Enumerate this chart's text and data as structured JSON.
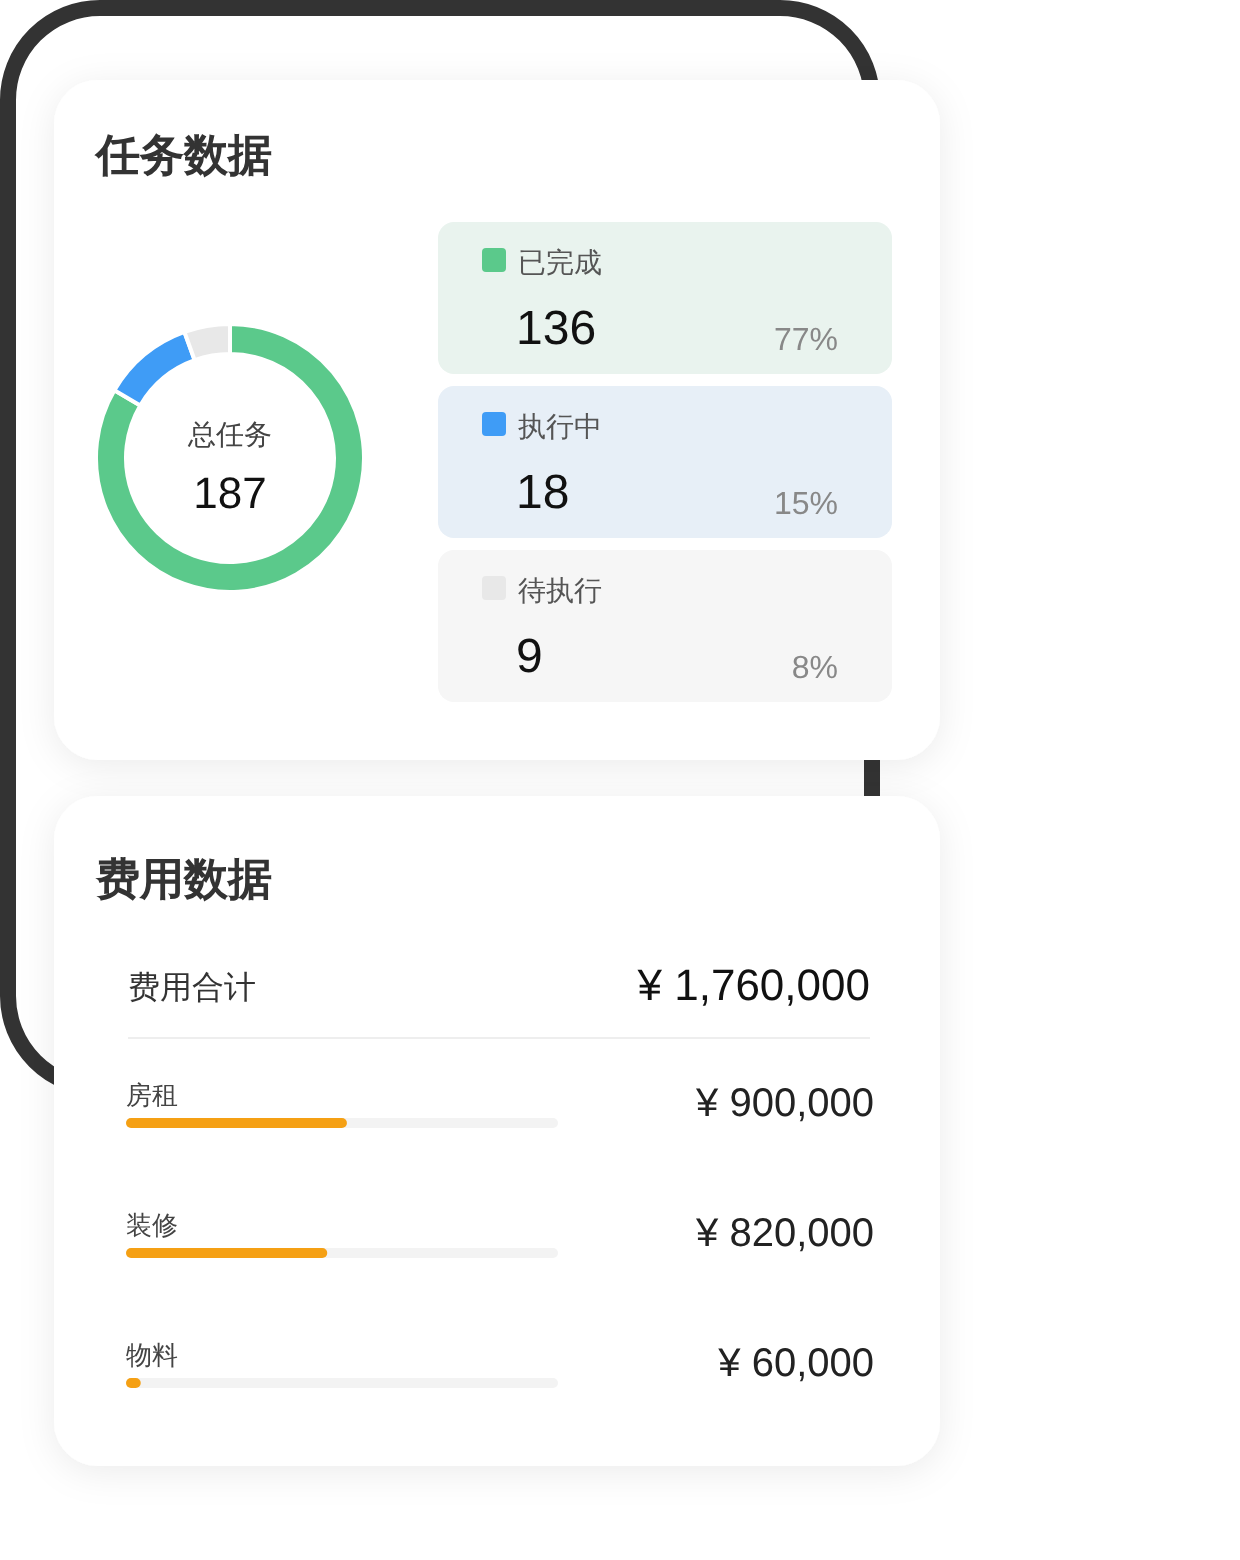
{
  "chart_data": [
    {
      "type": "donut",
      "title": "任务数据",
      "categories": [
        "已完成",
        "执行中",
        "待执行"
      ],
      "values": [
        136,
        18,
        9
      ],
      "colors": [
        "#5bc98b",
        "#3f9cf6",
        "#e8e8e8"
      ],
      "data_labels": true,
      "legend": "right",
      "annotations": [
        "总任务",
        "187",
        "77%",
        "15%",
        "8%"
      ]
    },
    {
      "type": "bar",
      "orientation": "horizontal",
      "title": "费用数据",
      "categories": [
        "房租",
        "装修",
        "物料"
      ],
      "values": [
        900000,
        820000,
        60000
      ],
      "color": "#f5a014",
      "xlim": [
        0,
        1760000
      ],
      "value_labels": [
        "¥ 900,000",
        "¥ 820,000",
        "¥ 60,000"
      ],
      "tick_labels": "y",
      "annotations": [
        "费用合计",
        "¥ 1,760,000"
      ]
    }
  ]
}
